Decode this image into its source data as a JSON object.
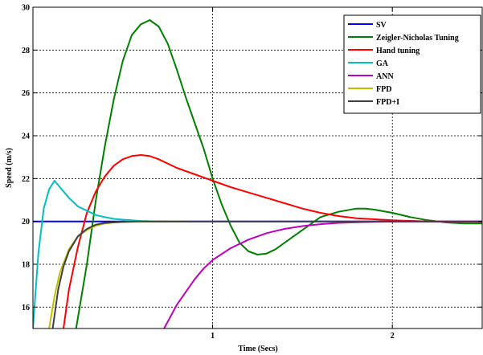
{
  "chart_data": {
    "type": "line",
    "title": "",
    "xlabel": "Time (Secs)",
    "ylabel": "Speed (m/s)",
    "xlim": [
      0,
      2.5
    ],
    "ylim": [
      15,
      30
    ],
    "xticks": [
      1,
      2
    ],
    "yticks": [
      16,
      18,
      20,
      22,
      24,
      26,
      28,
      30
    ],
    "grid": true,
    "legend_position": "top-right",
    "series": [
      {
        "name": "SV",
        "color": "#0000ff",
        "points": [
          [
            0.0,
            20.0
          ],
          [
            2.5,
            20.0
          ]
        ]
      },
      {
        "name": "Zeigler-Nicholas Tuning",
        "color": "#008000",
        "points": [
          [
            0.24,
            15.0
          ],
          [
            0.3,
            18.0
          ],
          [
            0.35,
            21.0
          ],
          [
            0.4,
            23.5
          ],
          [
            0.45,
            25.7
          ],
          [
            0.5,
            27.5
          ],
          [
            0.55,
            28.7
          ],
          [
            0.6,
            29.2
          ],
          [
            0.65,
            29.4
          ],
          [
            0.7,
            29.1
          ],
          [
            0.75,
            28.3
          ],
          [
            0.8,
            27.1
          ],
          [
            0.85,
            25.8
          ],
          [
            0.9,
            24.6
          ],
          [
            0.95,
            23.4
          ],
          [
            1.0,
            22.0
          ],
          [
            1.05,
            20.8
          ],
          [
            1.1,
            19.8
          ],
          [
            1.15,
            19.0
          ],
          [
            1.2,
            18.6
          ],
          [
            1.25,
            18.45
          ],
          [
            1.3,
            18.5
          ],
          [
            1.35,
            18.7
          ],
          [
            1.4,
            19.0
          ],
          [
            1.5,
            19.6
          ],
          [
            1.6,
            20.2
          ],
          [
            1.7,
            20.45
          ],
          [
            1.8,
            20.6
          ],
          [
            1.85,
            20.6
          ],
          [
            1.9,
            20.55
          ],
          [
            2.0,
            20.4
          ],
          [
            2.1,
            20.2
          ],
          [
            2.2,
            20.05
          ],
          [
            2.3,
            19.95
          ],
          [
            2.4,
            19.9
          ],
          [
            2.5,
            19.9
          ]
        ]
      },
      {
        "name": "Hand tuning",
        "color": "#ff0000",
        "points": [
          [
            0.17,
            15.0
          ],
          [
            0.2,
            16.8
          ],
          [
            0.25,
            18.8
          ],
          [
            0.3,
            20.4
          ],
          [
            0.35,
            21.4
          ],
          [
            0.4,
            22.1
          ],
          [
            0.45,
            22.6
          ],
          [
            0.5,
            22.9
          ],
          [
            0.55,
            23.05
          ],
          [
            0.6,
            23.1
          ],
          [
            0.65,
            23.05
          ],
          [
            0.7,
            22.9
          ],
          [
            0.8,
            22.5
          ],
          [
            0.9,
            22.2
          ],
          [
            1.0,
            21.9
          ],
          [
            1.1,
            21.6
          ],
          [
            1.2,
            21.35
          ],
          [
            1.3,
            21.1
          ],
          [
            1.4,
            20.85
          ],
          [
            1.5,
            20.6
          ],
          [
            1.6,
            20.4
          ],
          [
            1.7,
            20.25
          ],
          [
            1.8,
            20.15
          ],
          [
            1.9,
            20.1
          ],
          [
            2.0,
            20.05
          ],
          [
            2.2,
            20.0
          ],
          [
            2.5,
            19.98
          ]
        ]
      },
      {
        "name": "GA",
        "color": "#00bfbf",
        "points": [
          [
            0.0,
            15.0
          ],
          [
            0.03,
            18.5
          ],
          [
            0.06,
            20.6
          ],
          [
            0.09,
            21.5
          ],
          [
            0.12,
            21.9
          ],
          [
            0.15,
            21.6
          ],
          [
            0.2,
            21.1
          ],
          [
            0.25,
            20.7
          ],
          [
            0.3,
            20.5
          ],
          [
            0.35,
            20.3
          ],
          [
            0.4,
            20.2
          ],
          [
            0.45,
            20.12
          ],
          [
            0.5,
            20.08
          ],
          [
            0.55,
            20.05
          ],
          [
            0.6,
            20.02
          ],
          [
            0.65,
            20.01
          ],
          [
            0.7,
            20.0
          ],
          [
            0.8,
            20.0
          ]
        ]
      },
      {
        "name": "ANN",
        "color": "#bf00bf",
        "points": [
          [
            0.73,
            15.0
          ],
          [
            0.8,
            16.1
          ],
          [
            0.85,
            16.7
          ],
          [
            0.9,
            17.3
          ],
          [
            0.95,
            17.8
          ],
          [
            1.0,
            18.2
          ],
          [
            1.1,
            18.75
          ],
          [
            1.2,
            19.15
          ],
          [
            1.3,
            19.45
          ],
          [
            1.4,
            19.65
          ],
          [
            1.5,
            19.78
          ],
          [
            1.6,
            19.87
          ],
          [
            1.7,
            19.93
          ],
          [
            1.8,
            19.96
          ],
          [
            1.9,
            19.98
          ],
          [
            2.0,
            19.99
          ],
          [
            2.2,
            20.0
          ],
          [
            2.5,
            20.0
          ]
        ]
      },
      {
        "name": "FPD",
        "color": "#bfbf00",
        "points": [
          [
            0.09,
            15.0
          ],
          [
            0.12,
            16.5
          ],
          [
            0.15,
            17.6
          ],
          [
            0.2,
            18.7
          ],
          [
            0.25,
            19.3
          ],
          [
            0.3,
            19.6
          ],
          [
            0.35,
            19.8
          ],
          [
            0.4,
            19.9
          ],
          [
            0.45,
            19.95
          ],
          [
            0.5,
            19.97
          ],
          [
            0.6,
            19.99
          ],
          [
            0.7,
            20.0
          ],
          [
            0.85,
            20.0
          ]
        ]
      },
      {
        "name": "FPD+I",
        "color": "#404040",
        "points": [
          [
            0.11,
            15.0
          ],
          [
            0.14,
            16.8
          ],
          [
            0.17,
            17.9
          ],
          [
            0.2,
            18.6
          ],
          [
            0.25,
            19.3
          ],
          [
            0.3,
            19.65
          ],
          [
            0.35,
            19.85
          ],
          [
            0.4,
            19.93
          ],
          [
            0.5,
            19.98
          ],
          [
            0.6,
            20.0
          ],
          [
            2.5,
            20.0
          ]
        ]
      }
    ]
  }
}
